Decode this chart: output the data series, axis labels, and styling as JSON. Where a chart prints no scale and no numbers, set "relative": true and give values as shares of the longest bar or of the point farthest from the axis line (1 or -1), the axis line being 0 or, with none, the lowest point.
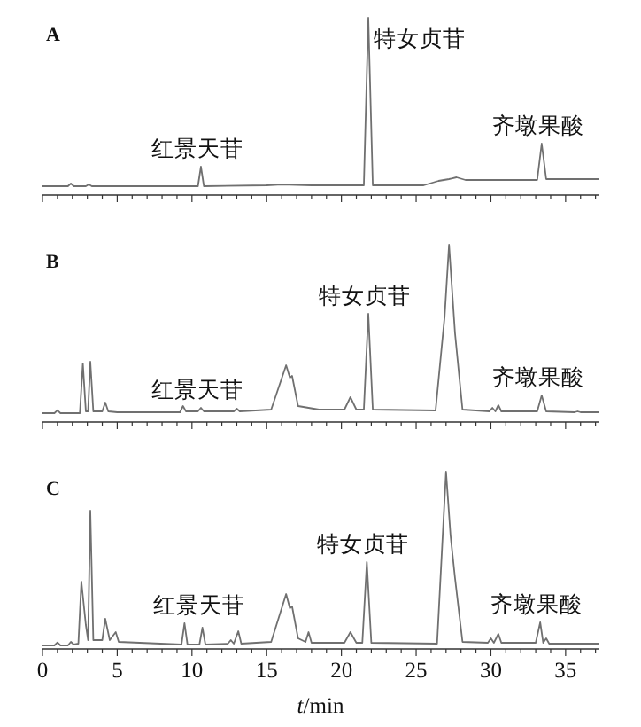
{
  "chart_data": [
    {
      "type": "line",
      "title": "A",
      "relative": true,
      "tick_labels": false,
      "xlim": [
        0,
        37.2
      ],
      "xticks": [
        0,
        {
          "value": 1,
          "label": null
        },
        {
          "value": 2,
          "label": null
        },
        {
          "value": 3,
          "label": null
        },
        {
          "value": 4,
          "label": null
        },
        5,
        {
          "value": 6,
          "label": null
        },
        {
          "value": 7,
          "label": null
        },
        {
          "value": 8,
          "label": null
        },
        {
          "value": 9,
          "label": null
        },
        10,
        {
          "value": 11,
          "label": null
        },
        {
          "value": 12,
          "label": null
        },
        {
          "value": 13,
          "label": null
        },
        {
          "value": 14,
          "label": null
        },
        15,
        {
          "value": 16,
          "label": null
        },
        {
          "value": 17,
          "label": null
        },
        {
          "value": 18,
          "label": null
        },
        {
          "value": 19,
          "label": null
        },
        20,
        {
          "value": 21,
          "label": null
        },
        {
          "value": 22,
          "label": null
        },
        {
          "value": 23,
          "label": null
        },
        {
          "value": 24,
          "label": null
        },
        25,
        {
          "value": 26,
          "label": null
        },
        {
          "value": 27,
          "label": null
        },
        {
          "value": 28,
          "label": null
        },
        {
          "value": 29,
          "label": null
        },
        30,
        {
          "value": 31,
          "label": null
        },
        {
          "value": 32,
          "label": null
        },
        {
          "value": 33,
          "label": null
        },
        {
          "value": 34,
          "label": null
        },
        35,
        {
          "value": 36,
          "label": null
        },
        {
          "value": 37,
          "label": null
        }
      ],
      "series": [
        {
          "color": "#707070",
          "x": [
            0,
            1.7,
            1.9,
            2.1,
            2.9,
            3.1,
            3.3,
            10.4,
            10.6,
            10.8,
            15,
            16,
            18,
            21.5,
            21.8,
            22.1,
            25.5,
            26.5,
            27.2,
            27.7,
            28.3,
            33.1,
            33.4,
            33.7,
            37.2
          ],
          "values": [
            0.05,
            0.05,
            0.065,
            0.05,
            0.05,
            0.06,
            0.05,
            0.05,
            0.16,
            0.05,
            0.055,
            0.06,
            0.055,
            0.055,
            1.0,
            0.055,
            0.055,
            0.08,
            0.09,
            0.1,
            0.085,
            0.085,
            0.29,
            0.09,
            0.09
          ]
        }
      ],
      "annotations": [
        {
          "text": "红景天苷",
          "x": 10.6,
          "y": 0.16
        },
        {
          "text": "特女贞苷",
          "x": 21.8,
          "y": 1.0
        },
        {
          "text": "齐墩果酸",
          "x": 33.4,
          "y": 0.29
        }
      ]
    },
    {
      "type": "line",
      "title": "B",
      "relative": true,
      "tick_labels": false,
      "xlim": [
        0,
        37.2
      ],
      "xticks": [
        0,
        {
          "value": 1,
          "label": null
        },
        {
          "value": 2,
          "label": null
        },
        {
          "value": 3,
          "label": null
        },
        {
          "value": 4,
          "label": null
        },
        5,
        {
          "value": 6,
          "label": null
        },
        {
          "value": 7,
          "label": null
        },
        {
          "value": 8,
          "label": null
        },
        {
          "value": 9,
          "label": null
        },
        10,
        {
          "value": 11,
          "label": null
        },
        {
          "value": 12,
          "label": null
        },
        {
          "value": 13,
          "label": null
        },
        {
          "value": 14,
          "label": null
        },
        15,
        {
          "value": 16,
          "label": null
        },
        {
          "value": 17,
          "label": null
        },
        {
          "value": 18,
          "label": null
        },
        {
          "value": 19,
          "label": null
        },
        20,
        {
          "value": 21,
          "label": null
        },
        {
          "value": 22,
          "label": null
        },
        {
          "value": 23,
          "label": null
        },
        {
          "value": 24,
          "label": null
        },
        25,
        {
          "value": 26,
          "label": null
        },
        {
          "value": 27,
          "label": null
        },
        {
          "value": 28,
          "label": null
        },
        {
          "value": 29,
          "label": null
        },
        30,
        {
          "value": 31,
          "label": null
        },
        {
          "value": 32,
          "label": null
        },
        {
          "value": 33,
          "label": null
        },
        {
          "value": 34,
          "label": null
        },
        35,
        {
          "value": 36,
          "label": null
        },
        {
          "value": 37,
          "label": null
        }
      ],
      "series": [
        {
          "color": "#707070",
          "x": [
            0,
            0.8,
            1.0,
            1.2,
            2.5,
            2.7,
            2.9,
            3.05,
            3.2,
            3.4,
            4.0,
            4.2,
            4.4,
            5.0,
            9.2,
            9.4,
            9.6,
            10.4,
            10.6,
            10.8,
            12.8,
            13.0,
            13.2,
            15.3,
            16.3,
            16.55,
            16.7,
            17.1,
            18.5,
            20.2,
            20.6,
            21.0,
            21.5,
            21.8,
            22.1,
            26.3,
            26.9,
            27.2,
            27.6,
            28.1,
            29.9,
            30.1,
            30.3,
            30.5,
            30.7,
            33.1,
            33.4,
            33.7,
            35.6,
            35.8,
            36.0,
            37.2
          ],
          "values": [
            0.05,
            0.05,
            0.066,
            0.05,
            0.05,
            0.33,
            0.06,
            0.06,
            0.34,
            0.06,
            0.06,
            0.11,
            0.06,
            0.055,
            0.055,
            0.09,
            0.06,
            0.06,
            0.08,
            0.06,
            0.06,
            0.075,
            0.06,
            0.07,
            0.32,
            0.25,
            0.26,
            0.09,
            0.07,
            0.07,
            0.14,
            0.07,
            0.07,
            0.61,
            0.07,
            0.065,
            0.59,
            1.0,
            0.5,
            0.07,
            0.06,
            0.08,
            0.06,
            0.095,
            0.06,
            0.06,
            0.15,
            0.06,
            0.055,
            0.06,
            0.055,
            0.055
          ]
        }
      ],
      "annotations": [
        {
          "text": "红景天苷",
          "x": 10.6,
          "y": 0.08
        },
        {
          "text": "特女贞苷",
          "x": 21.8,
          "y": 0.61
        },
        {
          "text": "齐墩果酸",
          "x": 33.4,
          "y": 0.15
        }
      ]
    },
    {
      "type": "line",
      "title": "C",
      "relative": true,
      "xlabel": "*t*/min",
      "xlim": [
        0,
        37.2
      ],
      "xticks": [
        0,
        {
          "value": 1,
          "label": null
        },
        {
          "value": 2,
          "label": null
        },
        {
          "value": 3,
          "label": null
        },
        {
          "value": 4,
          "label": null
        },
        5,
        {
          "value": 6,
          "label": null
        },
        {
          "value": 7,
          "label": null
        },
        {
          "value": 8,
          "label": null
        },
        {
          "value": 9,
          "label": null
        },
        10,
        {
          "value": 11,
          "label": null
        },
        {
          "value": 12,
          "label": null
        },
        {
          "value": 13,
          "label": null
        },
        {
          "value": 14,
          "label": null
        },
        15,
        {
          "value": 16,
          "label": null
        },
        {
          "value": 17,
          "label": null
        },
        {
          "value": 18,
          "label": null
        },
        {
          "value": 19,
          "label": null
        },
        20,
        {
          "value": 21,
          "label": null
        },
        {
          "value": 22,
          "label": null
        },
        {
          "value": 23,
          "label": null
        },
        {
          "value": 24,
          "label": null
        },
        25,
        {
          "value": 26,
          "label": null
        },
        {
          "value": 27,
          "label": null
        },
        {
          "value": 28,
          "label": null
        },
        {
          "value": 29,
          "label": null
        },
        30,
        {
          "value": 31,
          "label": null
        },
        {
          "value": 32,
          "label": null
        },
        {
          "value": 33,
          "label": null
        },
        {
          "value": 34,
          "label": null
        },
        35,
        {
          "value": 36,
          "label": null
        },
        {
          "value": 37,
          "label": null
        }
      ],
      "series": [
        {
          "color": "#707070",
          "x": [
            0,
            0.8,
            1.0,
            1.2,
            1.7,
            1.9,
            2.1,
            2.4,
            2.6,
            2.9,
            3.05,
            3.2,
            3.4,
            4.0,
            4.2,
            4.5,
            4.9,
            5.1,
            9.3,
            9.5,
            9.7,
            10.5,
            10.7,
            10.9,
            12.4,
            12.6,
            12.8,
            13.1,
            13.3,
            15.3,
            16.3,
            16.55,
            16.7,
            17.1,
            17.6,
            17.8,
            18.0,
            20.2,
            20.6,
            21.0,
            21.4,
            21.7,
            22.0,
            26.4,
            27.0,
            27.3,
            27.6,
            28.1,
            29.8,
            30.0,
            30.2,
            30.5,
            30.7,
            33.0,
            33.3,
            33.5,
            33.7,
            33.9,
            37.2
          ],
          "values": [
            0.02,
            0.02,
            0.037,
            0.02,
            0.02,
            0.04,
            0.025,
            0.03,
            0.38,
            0.135,
            0.05,
            0.78,
            0.05,
            0.05,
            0.17,
            0.05,
            0.095,
            0.04,
            0.025,
            0.145,
            0.025,
            0.025,
            0.12,
            0.025,
            0.03,
            0.05,
            0.03,
            0.1,
            0.03,
            0.04,
            0.31,
            0.23,
            0.24,
            0.06,
            0.04,
            0.095,
            0.035,
            0.035,
            0.095,
            0.035,
            0.035,
            0.49,
            0.035,
            0.03,
            1.0,
            0.64,
            0.4,
            0.04,
            0.035,
            0.06,
            0.035,
            0.085,
            0.035,
            0.035,
            0.15,
            0.035,
            0.06,
            0.03,
            0.03
          ]
        }
      ],
      "annotations": [
        {
          "text": "红景天苷",
          "x": 10.7,
          "y": 0.145
        },
        {
          "text": "特女贞苷",
          "x": 21.7,
          "y": 0.49
        },
        {
          "text": "齐墩果酸",
          "x": 33.3,
          "y": 0.15
        }
      ]
    }
  ]
}
